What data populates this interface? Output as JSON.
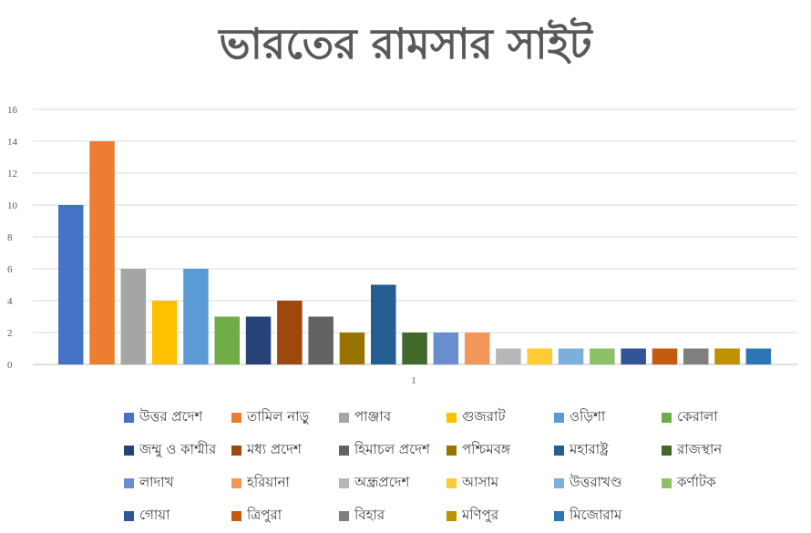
{
  "chart_data": {
    "type": "bar",
    "title": "ভারতের রামসার সাইট",
    "categories": [
      "1"
    ],
    "ylim": [
      0,
      16
    ],
    "yticks": [
      0,
      2,
      4,
      6,
      8,
      10,
      12,
      14,
      16
    ],
    "grid": true,
    "legend_position": "bottom",
    "series": [
      {
        "name": "উত্তর প্রদেশ",
        "values": [
          10
        ],
        "color": "#4472C4"
      },
      {
        "name": "তামিল নাড়ু",
        "values": [
          14
        ],
        "color": "#ED7D31"
      },
      {
        "name": "পাঞ্জাব",
        "values": [
          6
        ],
        "color": "#A5A5A5"
      },
      {
        "name": "গুজরাট",
        "values": [
          4
        ],
        "color": "#FFC000"
      },
      {
        "name": "ওড়িশা",
        "values": [
          6
        ],
        "color": "#5B9BD5"
      },
      {
        "name": "কেরালা",
        "values": [
          3
        ],
        "color": "#70AD47"
      },
      {
        "name": "জম্মু ও কাশ্মীর",
        "values": [
          3
        ],
        "color": "#264478"
      },
      {
        "name": "মধ্য প্রদেশ",
        "values": [
          4
        ],
        "color": "#9E480E"
      },
      {
        "name": "হিমাচল প্রদেশ",
        "values": [
          3
        ],
        "color": "#636363"
      },
      {
        "name": "পশ্চিমবঙ্গ",
        "values": [
          2
        ],
        "color": "#997300"
      },
      {
        "name": "মহারাষ্ট্র",
        "values": [
          5
        ],
        "color": "#255E91"
      },
      {
        "name": "রাজস্থান",
        "values": [
          2
        ],
        "color": "#43682B"
      },
      {
        "name": "লাদাখ",
        "values": [
          2
        ],
        "color": "#698ED0"
      },
      {
        "name": "হরিয়ানা",
        "values": [
          2
        ],
        "color": "#F1975A"
      },
      {
        "name": "অন্ধ্রপ্রদেশ",
        "values": [
          1
        ],
        "color": "#B7B7B7"
      },
      {
        "name": "আসাম",
        "values": [
          1
        ],
        "color": "#FFCD33"
      },
      {
        "name": "উত্তরাখণ্ড",
        "values": [
          1
        ],
        "color": "#7CAFDD"
      },
      {
        "name": "কর্ণাটক",
        "values": [
          1
        ],
        "color": "#8CC168"
      },
      {
        "name": "গোয়া",
        "values": [
          1
        ],
        "color": "#2F5597"
      },
      {
        "name": "ত্রিপুরা",
        "values": [
          1
        ],
        "color": "#C55A11"
      },
      {
        "name": "বিহার",
        "values": [
          1
        ],
        "color": "#7F7F7F"
      },
      {
        "name": "মণিপুর",
        "values": [
          1
        ],
        "color": "#BF9000"
      },
      {
        "name": "মিজোরাম",
        "values": [
          1
        ],
        "color": "#2E75B6"
      }
    ]
  }
}
